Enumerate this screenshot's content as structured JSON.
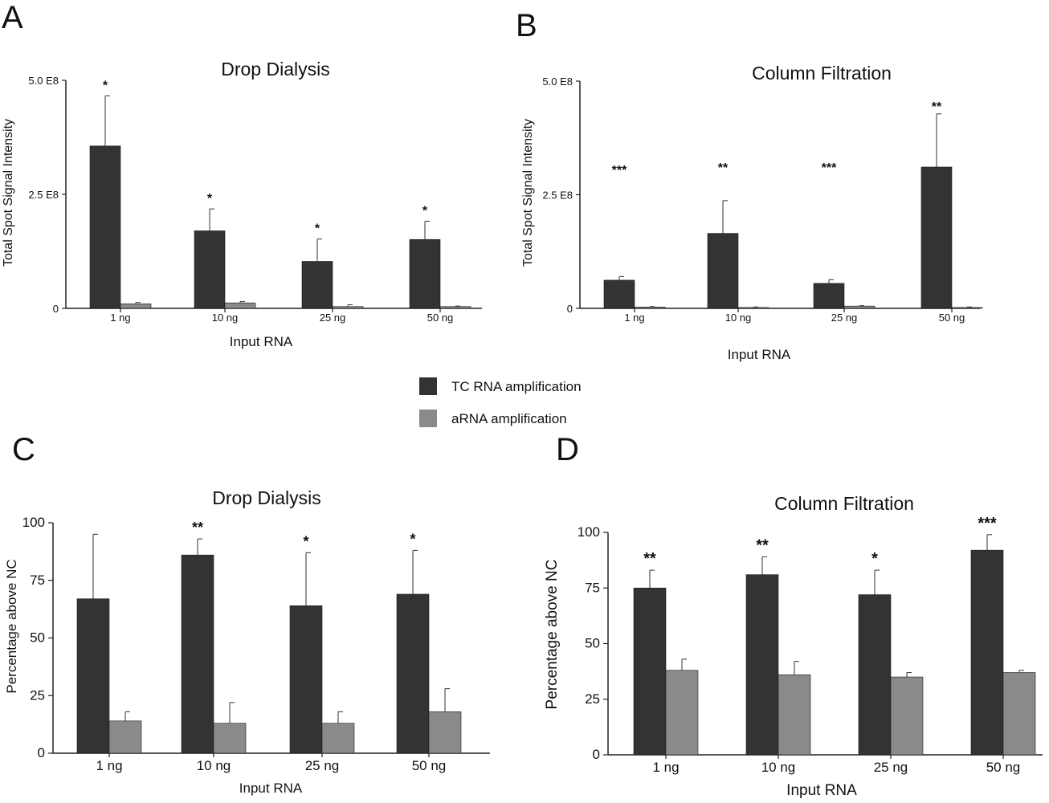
{
  "legend": {
    "items": [
      {
        "label": "TC RNA amplification",
        "color": "#333333"
      },
      {
        "label": "aRNA amplification",
        "color": "#8a8a8a"
      }
    ]
  },
  "chart_data": [
    {
      "panel": "A",
      "type": "bar",
      "title": "Drop Dialysis",
      "xlabel": "Input RNA",
      "ylabel": "Total Spot Signal Intensity",
      "categories": [
        "1 ng",
        "10 ng",
        "25 ng",
        "50 ng"
      ],
      "ylim": [
        0,
        500000000
      ],
      "yticks": [
        0,
        250000000,
        500000000
      ],
      "ytick_labels": [
        "0",
        "2.5 E8",
        "5.0 E8"
      ],
      "series": [
        {
          "values": [
            356000000,
            170000000,
            103000000,
            151000000
          ],
          "errors": [
            110000000,
            48000000,
            49000000,
            40000000
          ]
        },
        {
          "values": [
            10000000,
            12000000,
            4000000,
            4000000
          ],
          "errors": [
            3000000,
            3000000,
            4000000,
            1000000
          ]
        }
      ],
      "annotations": [
        "*",
        "*",
        "*",
        "*"
      ]
    },
    {
      "panel": "B",
      "type": "bar",
      "title": "Column Filtration",
      "xlabel": "Input RNA",
      "ylabel": "Total Spot Signal Intensity",
      "categories": [
        "1 ng",
        "10 ng",
        "25 ng",
        "50 ng"
      ],
      "ylim": [
        0,
        500000000
      ],
      "yticks": [
        0,
        250000000,
        500000000
      ],
      "ytick_labels": [
        "0",
        "2.5 E8",
        "5.0 E8"
      ],
      "series": [
        {
          "values": [
            62000000,
            165000000,
            55000000,
            311000000
          ],
          "errors": [
            8000000,
            72000000,
            8000000,
            117000000
          ]
        },
        {
          "values": [
            3000000,
            2000000,
            5000000,
            2000000
          ],
          "errors": [
            1000000,
            1000000,
            1000000,
            1000000
          ]
        }
      ],
      "annotations": [
        "***",
        "**",
        "***",
        "**"
      ],
      "annotation_y": [
        295000000,
        300000000,
        300000000,
        435000000
      ]
    },
    {
      "panel": "C",
      "type": "bar",
      "title": "Drop Dialysis",
      "xlabel": "Input RNA",
      "ylabel": "Percentage above NC",
      "categories": [
        "1 ng",
        "10 ng",
        "25 ng",
        "50 ng"
      ],
      "ylim": [
        0,
        100
      ],
      "yticks": [
        0,
        25,
        50,
        75,
        100
      ],
      "ytick_labels": [
        "0",
        "25",
        "50",
        "75",
        "100"
      ],
      "series": [
        {
          "values": [
            67,
            86,
            64,
            69
          ],
          "errors": [
            28,
            7,
            23,
            19
          ]
        },
        {
          "values": [
            14,
            13,
            13,
            18
          ],
          "errors": [
            4,
            9,
            5,
            10
          ]
        }
      ],
      "annotations": [
        "",
        "**",
        "*",
        "*"
      ]
    },
    {
      "panel": "D",
      "type": "bar",
      "title": "Column Filtration",
      "xlabel": "Input RNA",
      "ylabel": "Percentage above NC",
      "categories": [
        "1 ng",
        "10 ng",
        "25 ng",
        "50 ng"
      ],
      "ylim": [
        0,
        100
      ],
      "yticks": [
        0,
        25,
        50,
        75,
        100
      ],
      "ytick_labels": [
        "0",
        "25",
        "50",
        "75",
        "100"
      ],
      "series": [
        {
          "values": [
            75,
            81,
            72,
            92
          ],
          "errors": [
            8,
            8,
            11,
            7
          ]
        },
        {
          "values": [
            38,
            36,
            35,
            37
          ],
          "errors": [
            5,
            6,
            2,
            1
          ]
        }
      ],
      "annotations": [
        "**",
        "**",
        "*",
        "***"
      ]
    }
  ]
}
